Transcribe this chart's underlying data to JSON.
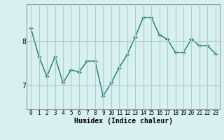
{
  "x": [
    0,
    1,
    2,
    3,
    4,
    5,
    6,
    7,
    8,
    9,
    10,
    11,
    12,
    13,
    14,
    15,
    16,
    17,
    18,
    19,
    20,
    21,
    22,
    23
  ],
  "y": [
    8.3,
    7.65,
    7.2,
    7.65,
    7.05,
    7.35,
    7.3,
    7.55,
    7.55,
    6.75,
    7.05,
    7.4,
    7.7,
    8.1,
    8.55,
    8.55,
    8.15,
    8.05,
    7.75,
    7.75,
    8.05,
    7.9,
    7.9,
    7.72
  ],
  "line_color": "#1a7a6e",
  "marker": "+",
  "bg_color": "#d8f0f0",
  "grid_color": "#aecccc",
  "xlabel": "Humidex (Indice chaleur)",
  "yticks": [
    7,
    8
  ],
  "ylim": [
    6.45,
    8.85
  ],
  "xlim": [
    -0.5,
    23.5
  ],
  "fig_width": 3.2,
  "fig_height": 2.0,
  "dpi": 100
}
